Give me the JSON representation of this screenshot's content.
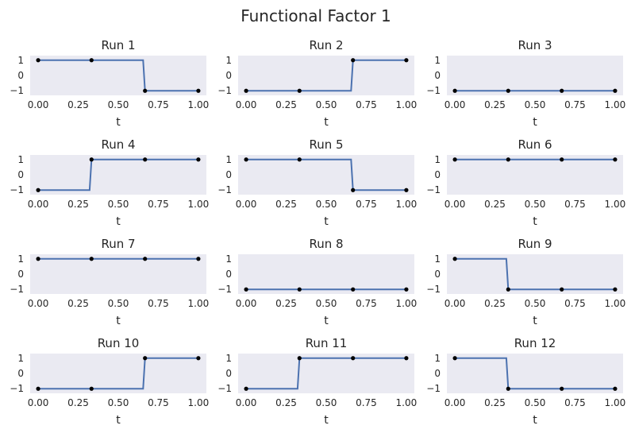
{
  "figure": {
    "title": "Functional Factor 1"
  },
  "chart_data": [
    {
      "type": "line",
      "title": "Run 1",
      "xlabel": "t",
      "ylabel": "",
      "x": [
        0,
        0.333,
        0.667,
        1.0
      ],
      "values": [
        1,
        1,
        -1,
        -1
      ],
      "xticks": [
        "0.00",
        "0.25",
        "0.50",
        "0.75",
        "1.00"
      ],
      "yticks": [
        "1",
        "0",
        "−1"
      ],
      "xlim": [
        -0.05,
        1.05
      ],
      "ylim": [
        -1.3,
        1.3
      ],
      "grid": false,
      "line_color": "#4c72b0",
      "marker_color": "#000000"
    },
    {
      "type": "line",
      "title": "Run 2",
      "xlabel": "t",
      "ylabel": "",
      "x": [
        0,
        0.333,
        0.667,
        1.0
      ],
      "values": [
        -1,
        -1,
        1,
        1
      ],
      "xticks": [
        "0.00",
        "0.25",
        "0.50",
        "0.75",
        "1.00"
      ],
      "yticks": [
        "1",
        "0",
        "−1"
      ],
      "xlim": [
        -0.05,
        1.05
      ],
      "ylim": [
        -1.3,
        1.3
      ],
      "grid": false,
      "line_color": "#4c72b0",
      "marker_color": "#000000"
    },
    {
      "type": "line",
      "title": "Run 3",
      "xlabel": "t",
      "ylabel": "",
      "x": [
        0,
        0.333,
        0.667,
        1.0
      ],
      "values": [
        -1,
        -1,
        -1,
        -1
      ],
      "xticks": [
        "0.00",
        "0.25",
        "0.50",
        "0.75",
        "1.00"
      ],
      "yticks": [
        "1",
        "0",
        "−1"
      ],
      "xlim": [
        -0.05,
        1.05
      ],
      "ylim": [
        -1.3,
        1.3
      ],
      "grid": false,
      "line_color": "#4c72b0",
      "marker_color": "#000000"
    },
    {
      "type": "line",
      "title": "Run 4",
      "xlabel": "t",
      "ylabel": "",
      "x": [
        0,
        0.333,
        0.667,
        1.0
      ],
      "values": [
        -1,
        1,
        1,
        1
      ],
      "xticks": [
        "0.00",
        "0.25",
        "0.50",
        "0.75",
        "1.00"
      ],
      "yticks": [
        "1",
        "0",
        "−1"
      ],
      "xlim": [
        -0.05,
        1.05
      ],
      "ylim": [
        -1.3,
        1.3
      ],
      "grid": false,
      "line_color": "#4c72b0",
      "marker_color": "#000000"
    },
    {
      "type": "line",
      "title": "Run 5",
      "xlabel": "t",
      "ylabel": "",
      "x": [
        0,
        0.333,
        0.667,
        1.0
      ],
      "values": [
        1,
        1,
        -1,
        -1
      ],
      "xticks": [
        "0.00",
        "0.25",
        "0.50",
        "0.75",
        "1.00"
      ],
      "yticks": [
        "1",
        "0",
        "−1"
      ],
      "xlim": [
        -0.05,
        1.05
      ],
      "ylim": [
        -1.3,
        1.3
      ],
      "grid": false,
      "line_color": "#4c72b0",
      "marker_color": "#000000"
    },
    {
      "type": "line",
      "title": "Run 6",
      "xlabel": "t",
      "ylabel": "",
      "x": [
        0,
        0.333,
        0.667,
        1.0
      ],
      "values": [
        1,
        1,
        1,
        1
      ],
      "xticks": [
        "0.00",
        "0.25",
        "0.50",
        "0.75",
        "1.00"
      ],
      "yticks": [
        "1",
        "0",
        "−1"
      ],
      "xlim": [
        -0.05,
        1.05
      ],
      "ylim": [
        -1.3,
        1.3
      ],
      "grid": false,
      "line_color": "#4c72b0",
      "marker_color": "#000000"
    },
    {
      "type": "line",
      "title": "Run 7",
      "xlabel": "t",
      "ylabel": "",
      "x": [
        0,
        0.333,
        0.667,
        1.0
      ],
      "values": [
        1,
        1,
        1,
        1
      ],
      "xticks": [
        "0.00",
        "0.25",
        "0.50",
        "0.75",
        "1.00"
      ],
      "yticks": [
        "1",
        "0",
        "−1"
      ],
      "xlim": [
        -0.05,
        1.05
      ],
      "ylim": [
        -1.3,
        1.3
      ],
      "grid": false,
      "line_color": "#4c72b0",
      "marker_color": "#000000"
    },
    {
      "type": "line",
      "title": "Run 8",
      "xlabel": "t",
      "ylabel": "",
      "x": [
        0,
        0.333,
        0.667,
        1.0
      ],
      "values": [
        -1,
        -1,
        -1,
        -1
      ],
      "xticks": [
        "0.00",
        "0.25",
        "0.50",
        "0.75",
        "1.00"
      ],
      "yticks": [
        "1",
        "0",
        "−1"
      ],
      "xlim": [
        -0.05,
        1.05
      ],
      "ylim": [
        -1.3,
        1.3
      ],
      "grid": false,
      "line_color": "#4c72b0",
      "marker_color": "#000000"
    },
    {
      "type": "line",
      "title": "Run 9",
      "xlabel": "t",
      "ylabel": "",
      "x": [
        0,
        0.333,
        0.667,
        1.0
      ],
      "values": [
        1,
        -1,
        -1,
        -1
      ],
      "xticks": [
        "0.00",
        "0.25",
        "0.50",
        "0.75",
        "1.00"
      ],
      "yticks": [
        "1",
        "0",
        "−1"
      ],
      "xlim": [
        -0.05,
        1.05
      ],
      "ylim": [
        -1.3,
        1.3
      ],
      "grid": false,
      "line_color": "#4c72b0",
      "marker_color": "#000000"
    },
    {
      "type": "line",
      "title": "Run 10",
      "xlabel": "t",
      "ylabel": "",
      "x": [
        0,
        0.333,
        0.667,
        1.0
      ],
      "values": [
        -1,
        -1,
        1,
        1
      ],
      "xticks": [
        "0.00",
        "0.25",
        "0.50",
        "0.75",
        "1.00"
      ],
      "yticks": [
        "1",
        "0",
        "−1"
      ],
      "xlim": [
        -0.05,
        1.05
      ],
      "ylim": [
        -1.3,
        1.3
      ],
      "grid": false,
      "line_color": "#4c72b0",
      "marker_color": "#000000"
    },
    {
      "type": "line",
      "title": "Run 11",
      "xlabel": "t",
      "ylabel": "",
      "x": [
        0,
        0.333,
        0.667,
        1.0
      ],
      "values": [
        -1,
        1,
        1,
        1
      ],
      "xticks": [
        "0.00",
        "0.25",
        "0.50",
        "0.75",
        "1.00"
      ],
      "yticks": [
        "1",
        "0",
        "−1"
      ],
      "xlim": [
        -0.05,
        1.05
      ],
      "ylim": [
        -1.3,
        1.3
      ],
      "grid": false,
      "line_color": "#4c72b0",
      "marker_color": "#000000"
    },
    {
      "type": "line",
      "title": "Run 12",
      "xlabel": "t",
      "ylabel": "",
      "x": [
        0,
        0.333,
        0.667,
        1.0
      ],
      "values": [
        1,
        -1,
        -1,
        -1
      ],
      "xticks": [
        "0.00",
        "0.25",
        "0.50",
        "0.75",
        "1.00"
      ],
      "yticks": [
        "1",
        "0",
        "−1"
      ],
      "xlim": [
        -0.05,
        1.05
      ],
      "ylim": [
        -1.3,
        1.3
      ],
      "grid": false,
      "line_color": "#4c72b0",
      "marker_color": "#000000"
    }
  ],
  "style": {
    "axes_background": "#eaeaf2"
  }
}
